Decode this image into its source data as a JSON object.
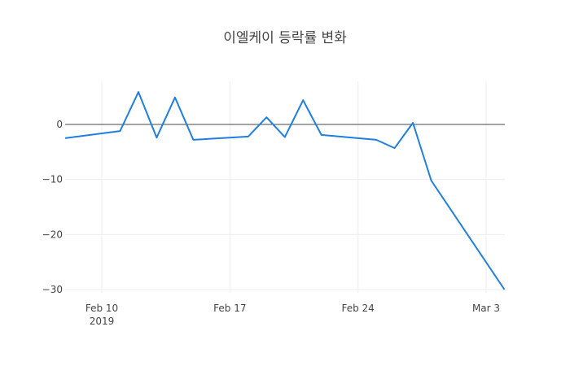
{
  "chart_data": {
    "type": "line",
    "title": "이엘케이 등락률 변화",
    "xlabel": "",
    "ylabel": "",
    "x": [
      "2019-02-08",
      "2019-02-11",
      "2019-02-12",
      "2019-02-13",
      "2019-02-14",
      "2019-02-15",
      "2019-02-18",
      "2019-02-19",
      "2019-02-20",
      "2019-02-21",
      "2019-02-22",
      "2019-02-25",
      "2019-02-26",
      "2019-02-27",
      "2019-02-28",
      "2019-03-04"
    ],
    "series": [
      {
        "name": "등락률",
        "color": "#1f7fe0",
        "values": [
          -2.5,
          -1.2,
          5.9,
          -2.4,
          4.9,
          -2.8,
          -2.2,
          1.3,
          -2.3,
          4.4,
          -1.9,
          -2.8,
          -4.3,
          0.3,
          -10.2,
          -30.0
        ]
      }
    ],
    "x_ticks": [
      {
        "label": "Feb 10",
        "sublabel": "2019",
        "date": "2019-02-10"
      },
      {
        "label": "Feb 17",
        "sublabel": "",
        "date": "2019-02-17"
      },
      {
        "label": "Feb 24",
        "sublabel": "",
        "date": "2019-02-24"
      },
      {
        "label": "Mar 3",
        "sublabel": "",
        "date": "2019-03-03"
      }
    ],
    "y_ticks": [
      0,
      -10,
      -20,
      -30
    ],
    "y_tick_labels": [
      "0",
      "−10",
      "−20",
      "−30"
    ],
    "ylim": [
      -30,
      8
    ],
    "grid": true,
    "zero_line": true,
    "legend": "none"
  }
}
